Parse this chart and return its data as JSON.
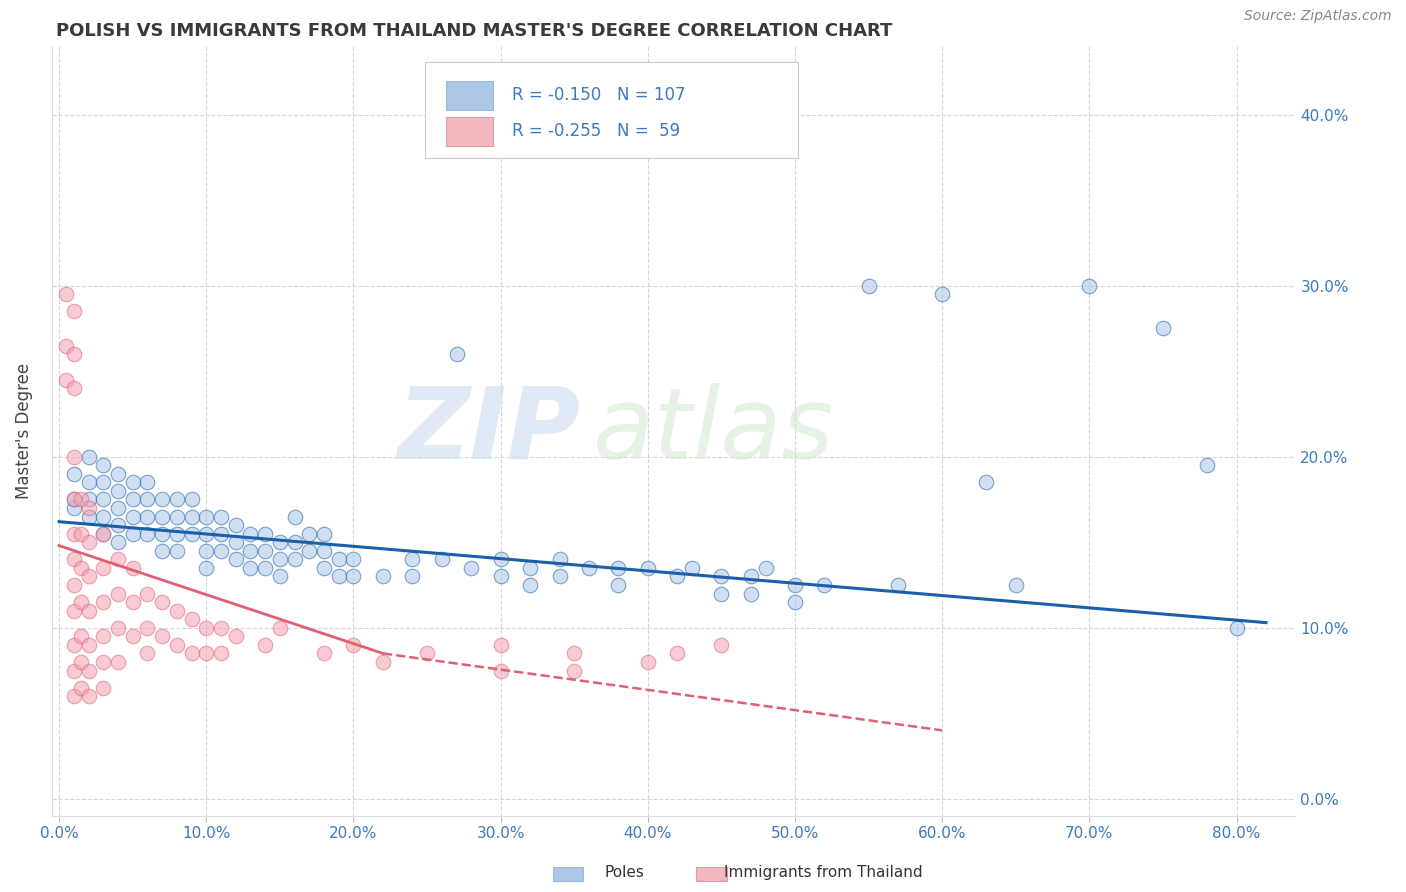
{
  "title": "POLISH VS IMMIGRANTS FROM THAILAND MASTER'S DEGREE CORRELATION CHART",
  "source": "Source: ZipAtlas.com",
  "xlabel_ticks": [
    "0.0%",
    "10.0%",
    "20.0%",
    "30.0%",
    "40.0%",
    "50.0%",
    "60.0%",
    "70.0%",
    "80.0%"
  ],
  "ylabel_ticks_right": [
    "0.0%",
    "10.0%",
    "20.0%",
    "30.0%",
    "40.0%"
  ],
  "xlabel_tick_vals": [
    0.0,
    0.1,
    0.2,
    0.3,
    0.4,
    0.5,
    0.6,
    0.7,
    0.8
  ],
  "ylabel_tick_vals": [
    0.0,
    0.1,
    0.2,
    0.3,
    0.4
  ],
  "xlim": [
    -0.005,
    0.84
  ],
  "ylim": [
    -0.01,
    0.44
  ],
  "watermark_zip": "ZIP",
  "watermark_atlas": "atlas",
  "legend_blue_color": "#aec6e8",
  "legend_pink_color": "#f4b8c1",
  "legend_text_color": "#3a7abf",
  "poles_color": "#aac4e8",
  "thailand_color": "#f4a0b0",
  "poles_line_color": "#1a5fa8",
  "thailand_line_color": "#e06070",
  "title_color": "#3a3a3a",
  "title_fontsize": 13,
  "axis_label": "Master's Degree",
  "tick_color": "#3a7abf",
  "grid_color": "#cccccc",
  "poles_scatter": [
    [
      0.01,
      0.19
    ],
    [
      0.01,
      0.17
    ],
    [
      0.01,
      0.175
    ],
    [
      0.02,
      0.2
    ],
    [
      0.02,
      0.185
    ],
    [
      0.02,
      0.175
    ],
    [
      0.02,
      0.165
    ],
    [
      0.03,
      0.195
    ],
    [
      0.03,
      0.185
    ],
    [
      0.03,
      0.175
    ],
    [
      0.03,
      0.165
    ],
    [
      0.03,
      0.155
    ],
    [
      0.04,
      0.19
    ],
    [
      0.04,
      0.18
    ],
    [
      0.04,
      0.17
    ],
    [
      0.04,
      0.16
    ],
    [
      0.04,
      0.15
    ],
    [
      0.05,
      0.185
    ],
    [
      0.05,
      0.175
    ],
    [
      0.05,
      0.165
    ],
    [
      0.05,
      0.155
    ],
    [
      0.06,
      0.185
    ],
    [
      0.06,
      0.175
    ],
    [
      0.06,
      0.165
    ],
    [
      0.06,
      0.155
    ],
    [
      0.07,
      0.175
    ],
    [
      0.07,
      0.165
    ],
    [
      0.07,
      0.155
    ],
    [
      0.07,
      0.145
    ],
    [
      0.08,
      0.175
    ],
    [
      0.08,
      0.165
    ],
    [
      0.08,
      0.155
    ],
    [
      0.08,
      0.145
    ],
    [
      0.09,
      0.175
    ],
    [
      0.09,
      0.165
    ],
    [
      0.09,
      0.155
    ],
    [
      0.1,
      0.165
    ],
    [
      0.1,
      0.155
    ],
    [
      0.1,
      0.145
    ],
    [
      0.1,
      0.135
    ],
    [
      0.11,
      0.165
    ],
    [
      0.11,
      0.155
    ],
    [
      0.11,
      0.145
    ],
    [
      0.12,
      0.16
    ],
    [
      0.12,
      0.15
    ],
    [
      0.12,
      0.14
    ],
    [
      0.13,
      0.155
    ],
    [
      0.13,
      0.145
    ],
    [
      0.13,
      0.135
    ],
    [
      0.14,
      0.155
    ],
    [
      0.14,
      0.145
    ],
    [
      0.14,
      0.135
    ],
    [
      0.15,
      0.15
    ],
    [
      0.15,
      0.14
    ],
    [
      0.15,
      0.13
    ],
    [
      0.16,
      0.165
    ],
    [
      0.16,
      0.15
    ],
    [
      0.16,
      0.14
    ],
    [
      0.17,
      0.155
    ],
    [
      0.17,
      0.145
    ],
    [
      0.18,
      0.155
    ],
    [
      0.18,
      0.145
    ],
    [
      0.18,
      0.135
    ],
    [
      0.19,
      0.14
    ],
    [
      0.19,
      0.13
    ],
    [
      0.2,
      0.14
    ],
    [
      0.2,
      0.13
    ],
    [
      0.22,
      0.13
    ],
    [
      0.24,
      0.14
    ],
    [
      0.24,
      0.13
    ],
    [
      0.26,
      0.14
    ],
    [
      0.27,
      0.26
    ],
    [
      0.28,
      0.135
    ],
    [
      0.3,
      0.14
    ],
    [
      0.3,
      0.13
    ],
    [
      0.32,
      0.135
    ],
    [
      0.32,
      0.125
    ],
    [
      0.34,
      0.14
    ],
    [
      0.34,
      0.13
    ],
    [
      0.36,
      0.135
    ],
    [
      0.38,
      0.135
    ],
    [
      0.38,
      0.125
    ],
    [
      0.4,
      0.135
    ],
    [
      0.42,
      0.13
    ],
    [
      0.43,
      0.135
    ],
    [
      0.45,
      0.13
    ],
    [
      0.45,
      0.12
    ],
    [
      0.47,
      0.13
    ],
    [
      0.47,
      0.12
    ],
    [
      0.48,
      0.135
    ],
    [
      0.5,
      0.125
    ],
    [
      0.5,
      0.115
    ],
    [
      0.52,
      0.125
    ],
    [
      0.55,
      0.3
    ],
    [
      0.57,
      0.125
    ],
    [
      0.6,
      0.295
    ],
    [
      0.63,
      0.185
    ],
    [
      0.65,
      0.125
    ],
    [
      0.7,
      0.3
    ],
    [
      0.75,
      0.275
    ],
    [
      0.78,
      0.195
    ],
    [
      0.8,
      0.1
    ]
  ],
  "thailand_scatter": [
    [
      0.005,
      0.295
    ],
    [
      0.005,
      0.265
    ],
    [
      0.005,
      0.245
    ],
    [
      0.01,
      0.285
    ],
    [
      0.01,
      0.26
    ],
    [
      0.01,
      0.24
    ],
    [
      0.01,
      0.2
    ],
    [
      0.01,
      0.175
    ],
    [
      0.01,
      0.155
    ],
    [
      0.01,
      0.14
    ],
    [
      0.01,
      0.125
    ],
    [
      0.01,
      0.11
    ],
    [
      0.01,
      0.09
    ],
    [
      0.01,
      0.075
    ],
    [
      0.01,
      0.06
    ],
    [
      0.015,
      0.175
    ],
    [
      0.015,
      0.155
    ],
    [
      0.015,
      0.135
    ],
    [
      0.015,
      0.115
    ],
    [
      0.015,
      0.095
    ],
    [
      0.015,
      0.08
    ],
    [
      0.015,
      0.065
    ],
    [
      0.02,
      0.17
    ],
    [
      0.02,
      0.15
    ],
    [
      0.02,
      0.13
    ],
    [
      0.02,
      0.11
    ],
    [
      0.02,
      0.09
    ],
    [
      0.02,
      0.075
    ],
    [
      0.02,
      0.06
    ],
    [
      0.03,
      0.155
    ],
    [
      0.03,
      0.135
    ],
    [
      0.03,
      0.115
    ],
    [
      0.03,
      0.095
    ],
    [
      0.03,
      0.08
    ],
    [
      0.03,
      0.065
    ],
    [
      0.04,
      0.14
    ],
    [
      0.04,
      0.12
    ],
    [
      0.04,
      0.1
    ],
    [
      0.04,
      0.08
    ],
    [
      0.05,
      0.135
    ],
    [
      0.05,
      0.115
    ],
    [
      0.05,
      0.095
    ],
    [
      0.06,
      0.12
    ],
    [
      0.06,
      0.1
    ],
    [
      0.06,
      0.085
    ],
    [
      0.07,
      0.115
    ],
    [
      0.07,
      0.095
    ],
    [
      0.08,
      0.11
    ],
    [
      0.08,
      0.09
    ],
    [
      0.09,
      0.105
    ],
    [
      0.09,
      0.085
    ],
    [
      0.1,
      0.1
    ],
    [
      0.1,
      0.085
    ],
    [
      0.11,
      0.1
    ],
    [
      0.11,
      0.085
    ],
    [
      0.12,
      0.095
    ],
    [
      0.14,
      0.09
    ],
    [
      0.15,
      0.1
    ],
    [
      0.18,
      0.085
    ],
    [
      0.2,
      0.09
    ],
    [
      0.22,
      0.08
    ],
    [
      0.25,
      0.085
    ],
    [
      0.3,
      0.09
    ],
    [
      0.3,
      0.075
    ],
    [
      0.35,
      0.085
    ],
    [
      0.35,
      0.075
    ],
    [
      0.4,
      0.08
    ],
    [
      0.42,
      0.085
    ],
    [
      0.45,
      0.09
    ]
  ],
  "poles_line": {
    "x0": 0.0,
    "x1": 0.82,
    "y0": 0.162,
    "y1": 0.103
  },
  "thailand_line_solid": {
    "x0": 0.0,
    "x1": 0.22,
    "y0": 0.148,
    "y1": 0.085
  },
  "thailand_line_dash": {
    "x0": 0.22,
    "x1": 0.6,
    "y0": 0.085,
    "y1": 0.04
  }
}
